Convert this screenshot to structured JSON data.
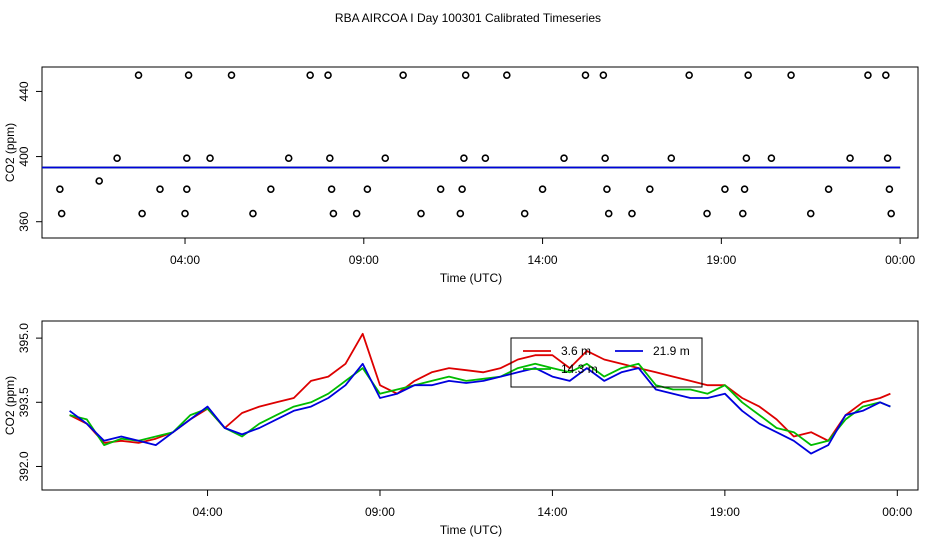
{
  "page_title": "RBA AIRCOA I  Day 100301  Calibrated Timeseries",
  "chart_data": [
    {
      "type": "scatter+line",
      "xlabel": "Time (UTC)",
      "ylabel": "CO2 (ppm)",
      "xlim": [
        0.0,
        24.5
      ],
      "ylim": [
        350,
        455
      ],
      "x_ticks": [
        4,
        9,
        14,
        19,
        24
      ],
      "x_tick_labels": [
        "04:00",
        "09:00",
        "14:00",
        "19:00",
        "00:00"
      ],
      "y_ticks": [
        360,
        400,
        440
      ],
      "y_tick_labels": [
        "360",
        "400",
        "440"
      ],
      "calibration_points": [
        {
          "x": 0.5,
          "y": 380
        },
        {
          "x": 0.55,
          "y": 365
        },
        {
          "x": 1.6,
          "y": 385
        },
        {
          "x": 2.1,
          "y": 399
        },
        {
          "x": 2.7,
          "y": 450
        },
        {
          "x": 2.8,
          "y": 365
        },
        {
          "x": 3.3,
          "y": 380
        },
        {
          "x": 4.0,
          "y": 365
        },
        {
          "x": 4.05,
          "y": 380
        },
        {
          "x": 4.05,
          "y": 399
        },
        {
          "x": 4.1,
          "y": 450
        },
        {
          "x": 4.7,
          "y": 399
        },
        {
          "x": 5.3,
          "y": 450
        },
        {
          "x": 5.9,
          "y": 365
        },
        {
          "x": 6.4,
          "y": 380
        },
        {
          "x": 6.9,
          "y": 399
        },
        {
          "x": 7.5,
          "y": 450
        },
        {
          "x": 8.0,
          "y": 450
        },
        {
          "x": 8.05,
          "y": 399
        },
        {
          "x": 8.1,
          "y": 380
        },
        {
          "x": 8.15,
          "y": 365
        },
        {
          "x": 8.8,
          "y": 365
        },
        {
          "x": 9.1,
          "y": 380
        },
        {
          "x": 9.6,
          "y": 399
        },
        {
          "x": 10.1,
          "y": 450
        },
        {
          "x": 10.6,
          "y": 365
        },
        {
          "x": 11.15,
          "y": 380
        },
        {
          "x": 11.7,
          "y": 365
        },
        {
          "x": 11.75,
          "y": 380
        },
        {
          "x": 11.8,
          "y": 399
        },
        {
          "x": 11.85,
          "y": 450
        },
        {
          "x": 12.4,
          "y": 399
        },
        {
          "x": 13.0,
          "y": 450
        },
        {
          "x": 13.5,
          "y": 365
        },
        {
          "x": 14.0,
          "y": 380
        },
        {
          "x": 14.6,
          "y": 399
        },
        {
          "x": 15.2,
          "y": 450
        },
        {
          "x": 15.7,
          "y": 450
        },
        {
          "x": 15.75,
          "y": 399
        },
        {
          "x": 15.8,
          "y": 380
        },
        {
          "x": 15.85,
          "y": 365
        },
        {
          "x": 16.5,
          "y": 365
        },
        {
          "x": 17.0,
          "y": 380
        },
        {
          "x": 17.6,
          "y": 399
        },
        {
          "x": 18.1,
          "y": 450
        },
        {
          "x": 18.6,
          "y": 365
        },
        {
          "x": 19.1,
          "y": 380
        },
        {
          "x": 19.6,
          "y": 365
        },
        {
          "x": 19.65,
          "y": 380
        },
        {
          "x": 19.7,
          "y": 399
        },
        {
          "x": 19.75,
          "y": 450
        },
        {
          "x": 20.4,
          "y": 399
        },
        {
          "x": 20.95,
          "y": 450
        },
        {
          "x": 21.5,
          "y": 365
        },
        {
          "x": 22.0,
          "y": 380
        },
        {
          "x": 22.6,
          "y": 399
        },
        {
          "x": 23.1,
          "y": 450
        },
        {
          "x": 23.6,
          "y": 450
        },
        {
          "x": 23.65,
          "y": 399
        },
        {
          "x": 23.7,
          "y": 380
        },
        {
          "x": 23.75,
          "y": 365
        }
      ],
      "series": [
        {
          "name": "3.6 m",
          "color": "#dd0000",
          "x": [
            0.0,
            24.0
          ],
          "y": [
            393.3,
            393.3
          ]
        },
        {
          "name": "14.3 m",
          "color": "#00bb00",
          "x": [
            0.0,
            24.0
          ],
          "y": [
            393.3,
            393.3
          ]
        },
        {
          "name": "21.9 m",
          "color": "#0000dd",
          "x": [
            0.0,
            24.0
          ],
          "y": [
            393.3,
            393.3
          ]
        }
      ]
    },
    {
      "type": "line",
      "xlabel": "Time (UTC)",
      "ylabel": "CO2 (ppm)",
      "xlim": [
        -0.8,
        24.6
      ],
      "ylim": [
        391.45,
        395.4
      ],
      "x_ticks": [
        4,
        9,
        14,
        19,
        24
      ],
      "x_tick_labels": [
        "04:00",
        "09:00",
        "14:00",
        "19:00",
        "00:00"
      ],
      "y_ticks": [
        392.0,
        393.5,
        395.0
      ],
      "y_tick_labels": [
        "392.0",
        "393.5",
        "395.0"
      ],
      "legend": {
        "position": "top-right",
        "entries": [
          "3.6 m",
          "14.3 m",
          "21.9 m"
        ]
      },
      "series": [
        {
          "name": "3.6 m",
          "color": "#dd0000",
          "x": [
            0,
            0.5,
            1,
            1.5,
            2,
            2.5,
            3,
            3.5,
            4,
            4.5,
            5,
            5.5,
            6,
            6.5,
            7,
            7.5,
            8,
            8.5,
            9,
            9.5,
            10,
            10.5,
            11,
            11.5,
            12,
            12.5,
            13,
            13.5,
            14,
            14.5,
            15,
            15.5,
            16,
            16.5,
            17,
            17.5,
            18,
            18.5,
            19,
            19.5,
            20,
            20.5,
            21,
            21.5,
            22,
            22.5,
            23,
            23.5,
            23.8
          ],
          "y": [
            393.2,
            393.0,
            392.55,
            392.6,
            392.55,
            392.65,
            392.8,
            393.1,
            393.35,
            392.9,
            393.25,
            393.4,
            393.5,
            393.6,
            394.0,
            394.1,
            394.4,
            395.1,
            393.9,
            393.7,
            394.0,
            394.2,
            394.3,
            394.25,
            394.2,
            394.3,
            394.5,
            394.6,
            394.6,
            394.3,
            394.7,
            394.5,
            394.4,
            394.3,
            394.2,
            394.1,
            394.0,
            393.9,
            393.9,
            393.6,
            393.4,
            393.1,
            392.7,
            392.8,
            392.6,
            393.2,
            393.5,
            393.6,
            393.7
          ]
        },
        {
          "name": "14.3 m",
          "color": "#00bb00",
          "x": [
            0,
            0.5,
            1,
            1.5,
            2,
            2.5,
            3,
            3.5,
            4,
            4.5,
            5,
            5.5,
            6,
            6.5,
            7,
            7.5,
            8,
            8.5,
            9,
            9.5,
            10,
            10.5,
            11,
            11.5,
            12,
            12.5,
            13,
            13.5,
            14,
            14.5,
            15,
            15.5,
            16,
            16.5,
            17,
            17.5,
            18,
            18.5,
            19,
            19.5,
            20,
            20.5,
            21,
            21.5,
            22,
            22.5,
            23,
            23.5,
            23.8
          ],
          "y": [
            393.2,
            393.1,
            392.5,
            392.65,
            392.6,
            392.7,
            392.8,
            393.2,
            393.35,
            392.9,
            392.7,
            393.0,
            393.2,
            393.4,
            393.5,
            393.7,
            394.0,
            394.3,
            393.7,
            393.8,
            393.9,
            394.0,
            394.1,
            394.0,
            394.05,
            394.1,
            394.3,
            394.4,
            394.3,
            394.2,
            394.4,
            394.1,
            394.3,
            394.4,
            393.9,
            393.8,
            393.8,
            393.7,
            393.9,
            393.5,
            393.2,
            392.9,
            392.8,
            392.5,
            392.6,
            393.1,
            393.4,
            393.5,
            393.4
          ]
        },
        {
          "name": "21.9 m",
          "color": "#0000dd",
          "x": [
            0,
            0.5,
            1,
            1.5,
            2,
            2.5,
            3,
            3.5,
            4,
            4.5,
            5,
            5.5,
            6,
            6.5,
            7,
            7.5,
            8,
            8.5,
            9,
            9.5,
            10,
            10.5,
            11,
            11.5,
            12,
            12.5,
            13,
            13.5,
            14,
            14.5,
            15,
            15.5,
            16,
            16.5,
            17,
            17.5,
            18,
            18.5,
            19,
            19.5,
            20,
            20.5,
            21,
            21.5,
            22,
            22.5,
            23,
            23.5,
            23.8
          ],
          "y": [
            393.3,
            393.0,
            392.6,
            392.7,
            392.6,
            392.5,
            392.8,
            393.1,
            393.4,
            392.9,
            392.75,
            392.9,
            393.1,
            393.3,
            393.4,
            393.6,
            393.9,
            394.4,
            393.6,
            393.7,
            393.9,
            393.9,
            394.0,
            393.95,
            394.0,
            394.1,
            394.2,
            394.3,
            394.1,
            394.0,
            394.3,
            394.0,
            394.2,
            394.3,
            393.8,
            393.7,
            393.6,
            393.6,
            393.7,
            393.3,
            393.0,
            392.8,
            392.6,
            392.3,
            392.5,
            393.2,
            393.3,
            393.5,
            393.4
          ]
        }
      ]
    }
  ]
}
